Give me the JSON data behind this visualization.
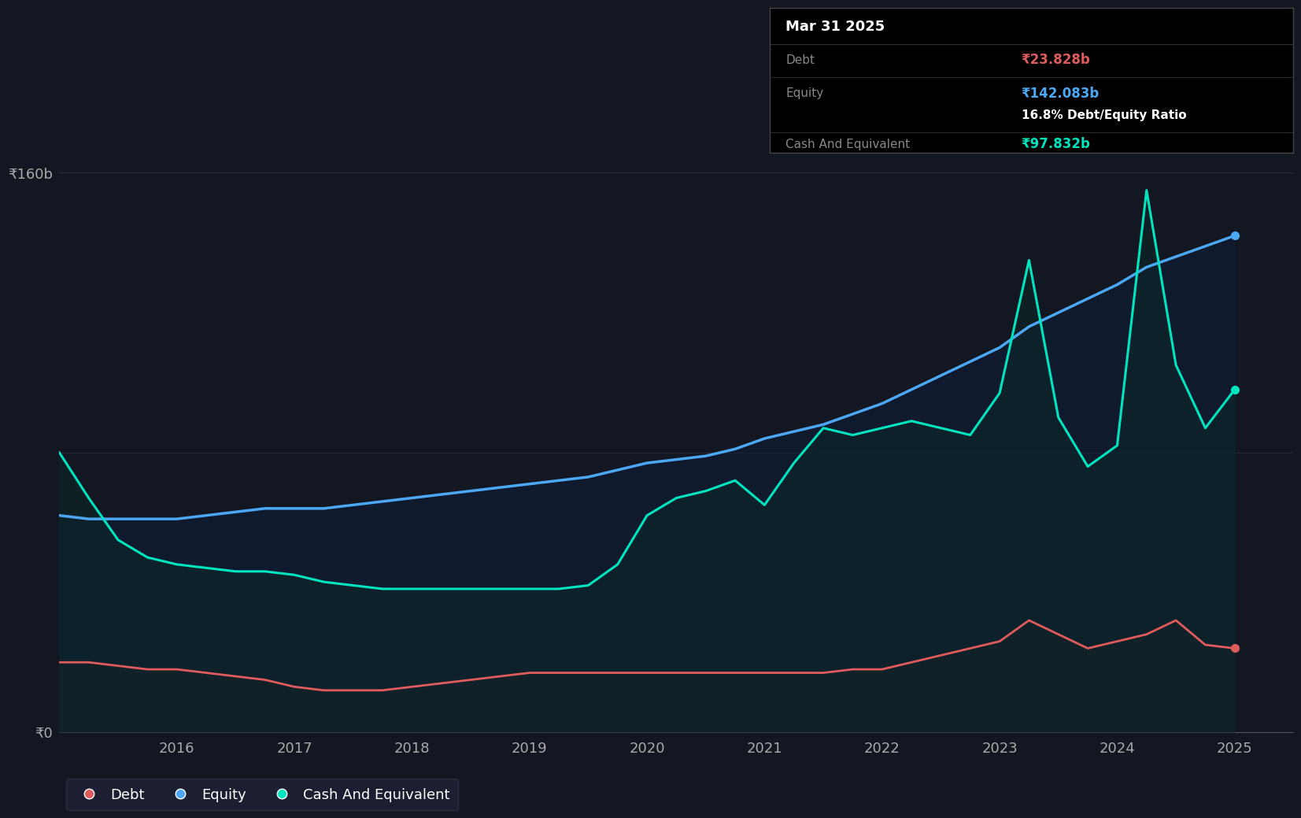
{
  "background_color": "#131722",
  "plot_bg_color": "#131722",
  "title_box": {
    "date": "Mar 31 2025",
    "debt_label": "Debt",
    "debt_value": "₹23.828b",
    "debt_color": "#e05c5c",
    "equity_label": "Equity",
    "equity_value": "₹142.083b",
    "equity_color": "#4ca8f5",
    "ratio_text": "16.8% Debt/Equity Ratio",
    "cash_label": "Cash And Equivalent",
    "cash_value": "₹97.832b",
    "cash_color": "#00e5c0",
    "box_bg": "#000000",
    "label_color": "#888888",
    "title_color": "#ffffff",
    "border_color": "#444444"
  },
  "y_labels": [
    "₹0",
    "₹160b"
  ],
  "y_tick_positions": [
    0,
    160
  ],
  "x_tick_labels": [
    "2016",
    "2017",
    "2018",
    "2019",
    "2020",
    "2021",
    "2022",
    "2023",
    "2024",
    "2025"
  ],
  "x_tick_positions": [
    2016,
    2017,
    2018,
    2019,
    2020,
    2021,
    2022,
    2023,
    2024,
    2025
  ],
  "debt_color": "#e05c5c",
  "equity_color": "#4ca8f5",
  "cash_color": "#00e5c0",
  "legend": [
    {
      "label": "Debt",
      "color": "#e05c5c"
    },
    {
      "label": "Equity",
      "color": "#4ca8f5"
    },
    {
      "label": "Cash And Equivalent",
      "color": "#00e5c0"
    }
  ],
  "time_points": [
    2015.0,
    2015.25,
    2015.5,
    2015.75,
    2016.0,
    2016.25,
    2016.5,
    2016.75,
    2017.0,
    2017.25,
    2017.5,
    2017.75,
    2018.0,
    2018.25,
    2018.5,
    2018.75,
    2019.0,
    2019.25,
    2019.5,
    2019.75,
    2020.0,
    2020.25,
    2020.5,
    2020.75,
    2021.0,
    2021.25,
    2021.5,
    2021.75,
    2022.0,
    2022.25,
    2022.5,
    2022.75,
    2023.0,
    2023.25,
    2023.5,
    2023.75,
    2024.0,
    2024.25,
    2024.5,
    2024.75,
    2025.0
  ],
  "debt_values": [
    20,
    20,
    19,
    18,
    18,
    17,
    16,
    15,
    13,
    12,
    12,
    12,
    13,
    14,
    15,
    16,
    17,
    17,
    17,
    17,
    17,
    17,
    17,
    17,
    17,
    17,
    17,
    18,
    18,
    20,
    22,
    24,
    26,
    32,
    28,
    24,
    26,
    28,
    32,
    25,
    24
  ],
  "equity_values": [
    62,
    61,
    61,
    61,
    61,
    62,
    63,
    64,
    64,
    64,
    65,
    66,
    67,
    68,
    69,
    70,
    71,
    72,
    73,
    75,
    77,
    78,
    79,
    81,
    84,
    86,
    88,
    91,
    94,
    98,
    102,
    106,
    110,
    116,
    120,
    124,
    128,
    133,
    136,
    139,
    142
  ],
  "cash_values": [
    80,
    67,
    55,
    50,
    48,
    47,
    46,
    46,
    45,
    43,
    42,
    41,
    41,
    41,
    41,
    41,
    41,
    41,
    42,
    48,
    62,
    67,
    69,
    72,
    65,
    77,
    87,
    85,
    87,
    89,
    87,
    85,
    97,
    135,
    90,
    76,
    82,
    155,
    105,
    87,
    98
  ],
  "ylim": [
    0,
    180
  ],
  "xlim": [
    2015.0,
    2025.5
  ]
}
